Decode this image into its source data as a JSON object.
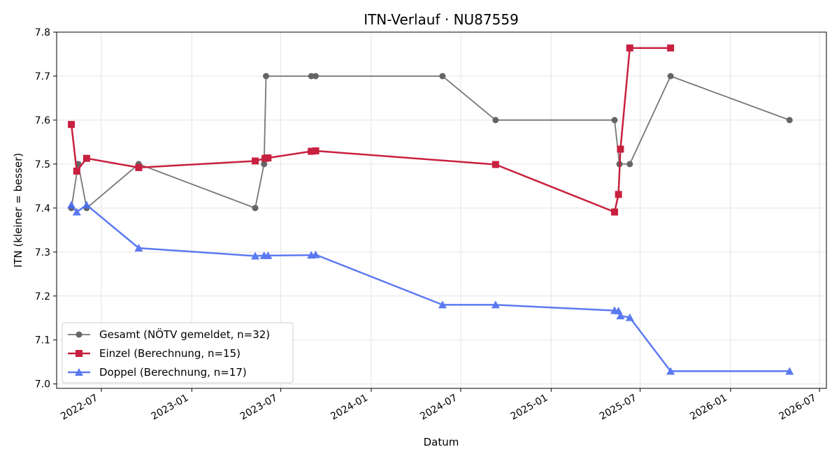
{
  "chart_data": {
    "type": "line",
    "title": "ITN-Verlauf · NU87559",
    "xlabel": "Datum",
    "ylabel": "ITN  (kleiner = besser)",
    "xlim": [
      "2022-04-01",
      "2026-07-15"
    ],
    "ylim": [
      6.99,
      7.8
    ],
    "xticks": [
      "2022-07",
      "2023-01",
      "2023-07",
      "2024-01",
      "2024-07",
      "2025-01",
      "2025-07",
      "2026-01",
      "2026-07"
    ],
    "yticks": [
      "7.0",
      "7.1",
      "7.2",
      "7.3",
      "7.4",
      "7.5",
      "7.6",
      "7.7",
      "7.8"
    ],
    "grid": true,
    "legend_position": "lower-left",
    "series": [
      {
        "name": "Gesamt (NÖTV gemeldet, n=32)",
        "color": "#555555",
        "marker": "circle",
        "points": [
          {
            "x": "2022-05-01",
            "y": 7.4
          },
          {
            "x": "2022-05-15",
            "y": 7.5
          },
          {
            "x": "2022-06-01",
            "y": 7.4
          },
          {
            "x": "2022-09-15",
            "y": 7.5
          },
          {
            "x": "2023-05-10",
            "y": 7.4
          },
          {
            "x": "2023-05-28",
            "y": 7.5
          },
          {
            "x": "2023-06-01",
            "y": 7.7
          },
          {
            "x": "2023-09-01",
            "y": 7.7
          },
          {
            "x": "2023-09-10",
            "y": 7.7
          },
          {
            "x": "2024-05-25",
            "y": 7.7
          },
          {
            "x": "2024-09-10",
            "y": 7.6
          },
          {
            "x": "2025-05-10",
            "y": 7.6
          },
          {
            "x": "2025-05-20",
            "y": 7.5
          },
          {
            "x": "2025-06-10",
            "y": 7.5
          },
          {
            "x": "2025-09-01",
            "y": 7.7
          },
          {
            "x": "2026-05-01",
            "y": 7.6
          }
        ]
      },
      {
        "name": "Einzel (Berechnung, n=15)",
        "color": "#c8203f",
        "marker": "square",
        "points": [
          {
            "x": "2022-05-01",
            "y": 7.59
          },
          {
            "x": "2022-05-12",
            "y": 7.484
          },
          {
            "x": "2022-06-01",
            "y": 7.513
          },
          {
            "x": "2022-09-15",
            "y": 7.492
          },
          {
            "x": "2023-05-10",
            "y": 7.507
          },
          {
            "x": "2023-05-30",
            "y": 7.513
          },
          {
            "x": "2023-06-05",
            "y": 7.514
          },
          {
            "x": "2023-09-01",
            "y": 7.529
          },
          {
            "x": "2023-09-10",
            "y": 7.53
          },
          {
            "x": "2024-09-10",
            "y": 7.499
          },
          {
            "x": "2025-05-10",
            "y": 7.391
          },
          {
            "x": "2025-05-18",
            "y": 7.431
          },
          {
            "x": "2025-05-22",
            "y": 7.534
          },
          {
            "x": "2025-06-10",
            "y": 7.764
          },
          {
            "x": "2025-09-01",
            "y": 7.764
          }
        ]
      },
      {
        "name": "Doppel (Berechnung, n=17)",
        "color": "#4a6cf0",
        "marker": "triangle",
        "points": [
          {
            "x": "2022-05-01",
            "y": 7.407
          },
          {
            "x": "2022-05-12",
            "y": 7.391
          },
          {
            "x": "2022-06-01",
            "y": 7.407
          },
          {
            "x": "2022-09-15",
            "y": 7.309
          },
          {
            "x": "2023-05-10",
            "y": 7.291
          },
          {
            "x": "2023-05-28",
            "y": 7.292
          },
          {
            "x": "2023-06-05",
            "y": 7.292
          },
          {
            "x": "2023-09-01",
            "y": 7.293
          },
          {
            "x": "2023-09-10",
            "y": 7.294
          },
          {
            "x": "2024-05-25",
            "y": 7.18
          },
          {
            "x": "2024-09-10",
            "y": 7.18
          },
          {
            "x": "2025-05-10",
            "y": 7.167
          },
          {
            "x": "2025-05-18",
            "y": 7.166
          },
          {
            "x": "2025-05-22",
            "y": 7.155
          },
          {
            "x": "2025-06-10",
            "y": 7.151
          },
          {
            "x": "2025-09-01",
            "y": 7.029
          },
          {
            "x": "2026-05-01",
            "y": 7.029
          }
        ]
      }
    ]
  }
}
